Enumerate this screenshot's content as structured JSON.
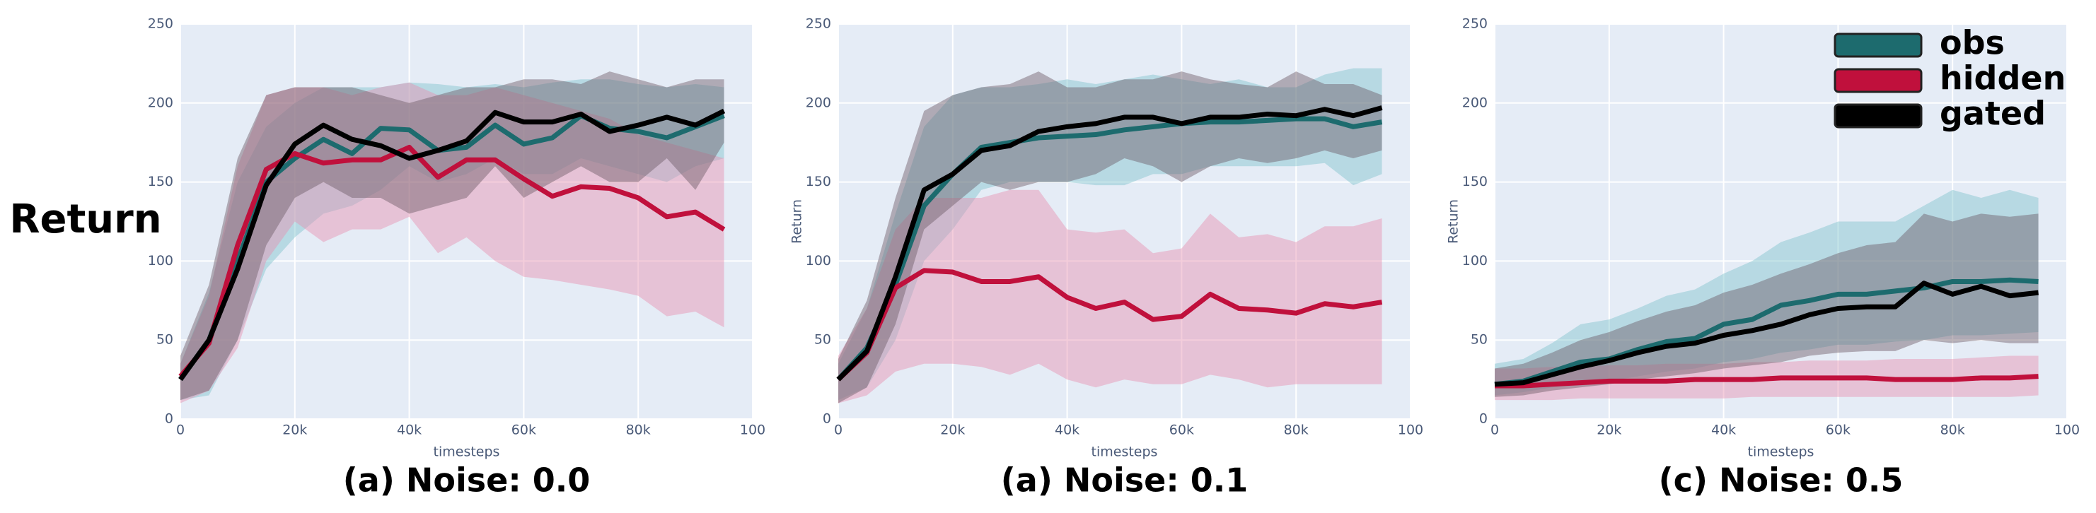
{
  "chart_data": [
    {
      "type": "line",
      "title": "(a) Noise: 0.0",
      "xlabel": "timesteps",
      "ylabel": "Return",
      "x": [
        0,
        5000,
        10000,
        15000,
        20000,
        25000,
        30000,
        35000,
        40000,
        45000,
        50000,
        55000,
        60000,
        65000,
        70000,
        75000,
        80000,
        85000,
        90000,
        95000
      ],
      "xlim": [
        0,
        100000
      ],
      "xticks": [
        0,
        {
          "value": 20000,
          "label": "20k"
        },
        {
          "value": 40000,
          "label": "40k"
        },
        {
          "value": 60000,
          "label": "60k"
        },
        {
          "value": 80000,
          "label": "80k"
        },
        {
          "value": 100000,
          "label": "100"
        }
      ],
      "ylim": [
        0,
        250
      ],
      "yticks": [
        0,
        50,
        100,
        150,
        200,
        250
      ],
      "grid": true,
      "series": [
        {
          "name": "obs",
          "color": "#1d6b6e",
          "band_color": "#7fc4cc",
          "values": [
            25,
            50,
            100,
            150,
            165,
            177,
            168,
            184,
            183,
            170,
            172,
            186,
            174,
            178,
            192,
            184,
            182,
            178,
            185,
            192
          ],
          "lower": [
            12,
            15,
            50,
            95,
            115,
            130,
            135,
            145,
            160,
            150,
            155,
            165,
            155,
            155,
            165,
            160,
            155,
            150,
            160,
            165
          ],
          "upper": [
            35,
            80,
            150,
            185,
            200,
            210,
            210,
            210,
            213,
            212,
            210,
            212,
            210,
            213,
            215,
            215,
            212,
            210,
            212,
            210
          ]
        },
        {
          "name": "hidden",
          "color": "#c0103c",
          "band_color": "#e691b0",
          "values": [
            27,
            48,
            110,
            158,
            168,
            162,
            164,
            164,
            172,
            153,
            164,
            164,
            152,
            141,
            147,
            146,
            140,
            128,
            131,
            120
          ],
          "lower": [
            10,
            18,
            45,
            100,
            125,
            112,
            120,
            120,
            128,
            105,
            115,
            100,
            90,
            88,
            85,
            82,
            78,
            65,
            68,
            58
          ],
          "upper": [
            35,
            78,
            160,
            205,
            210,
            210,
            205,
            210,
            213,
            205,
            205,
            210,
            205,
            200,
            195,
            190,
            180,
            175,
            170,
            165
          ]
        },
        {
          "name": "gated",
          "color": "#000000",
          "band_color": "#6d5a66",
          "values": [
            25,
            50,
            95,
            148,
            174,
            186,
            177,
            173,
            165,
            170,
            176,
            194,
            188,
            188,
            193,
            182,
            186,
            191,
            186,
            195
          ],
          "lower": [
            12,
            18,
            50,
            110,
            140,
            150,
            140,
            140,
            130,
            135,
            140,
            160,
            140,
            150,
            160,
            150,
            150,
            165,
            145,
            175
          ],
          "upper": [
            40,
            85,
            165,
            205,
            210,
            210,
            210,
            205,
            200,
            205,
            210,
            210,
            215,
            215,
            212,
            220,
            215,
            210,
            215,
            215
          ]
        }
      ]
    },
    {
      "type": "line",
      "title": "(a) Noise: 0.1",
      "xlabel": "timesteps",
      "ylabel": "Return",
      "x": [
        0,
        5000,
        10000,
        15000,
        20000,
        25000,
        30000,
        35000,
        40000,
        45000,
        50000,
        55000,
        60000,
        65000,
        70000,
        75000,
        80000,
        85000,
        90000,
        95000
      ],
      "xlim": [
        0,
        100000
      ],
      "xticks": [
        0,
        {
          "value": 20000,
          "label": "20k"
        },
        {
          "value": 40000,
          "label": "40k"
        },
        {
          "value": 60000,
          "label": "60k"
        },
        {
          "value": 80000,
          "label": "80k"
        },
        {
          "value": 100000,
          "label": "100"
        }
      ],
      "ylim": [
        0,
        250
      ],
      "yticks": [
        0,
        50,
        100,
        150,
        200,
        250
      ],
      "grid": true,
      "series": [
        {
          "name": "obs",
          "color": "#1d6b6e",
          "band_color": "#7fc4cc",
          "values": [
            25,
            45,
            85,
            135,
            155,
            172,
            175,
            178,
            179,
            180,
            183,
            185,
            187,
            188,
            188,
            189,
            190,
            190,
            185,
            188
          ],
          "lower": [
            12,
            20,
            50,
            100,
            120,
            145,
            150,
            150,
            150,
            148,
            148,
            155,
            155,
            160,
            160,
            160,
            160,
            162,
            148,
            155
          ],
          "upper": [
            35,
            70,
            130,
            185,
            205,
            210,
            210,
            212,
            215,
            212,
            215,
            218,
            215,
            212,
            215,
            210,
            210,
            218,
            222,
            222
          ]
        },
        {
          "name": "hidden",
          "color": "#c0103c",
          "band_color": "#e691b0",
          "values": [
            25,
            42,
            83,
            94,
            93,
            87,
            87,
            90,
            77,
            70,
            74,
            63,
            65,
            79,
            70,
            69,
            67,
            73,
            71,
            74
          ],
          "lower": [
            10,
            15,
            30,
            35,
            35,
            33,
            28,
            35,
            25,
            20,
            25,
            22,
            22,
            28,
            25,
            20,
            22,
            22,
            22,
            22
          ],
          "upper": [
            40,
            70,
            120,
            140,
            140,
            140,
            145,
            145,
            120,
            118,
            120,
            105,
            108,
            130,
            115,
            117,
            112,
            122,
            122,
            127
          ]
        },
        {
          "name": "gated",
          "color": "#000000",
          "band_color": "#6d5a66",
          "values": [
            25,
            43,
            90,
            145,
            155,
            170,
            173,
            182,
            185,
            187,
            191,
            191,
            187,
            191,
            191,
            193,
            192,
            196,
            192,
            197
          ],
          "lower": [
            10,
            20,
            60,
            120,
            135,
            150,
            145,
            150,
            150,
            155,
            165,
            160,
            150,
            160,
            165,
            162,
            165,
            170,
            165,
            170
          ],
          "upper": [
            38,
            75,
            140,
            195,
            205,
            210,
            212,
            220,
            210,
            210,
            215,
            215,
            220,
            215,
            212,
            210,
            220,
            212,
            212,
            205
          ]
        }
      ]
    },
    {
      "type": "line",
      "title": "(c) Noise: 0.5",
      "xlabel": "timesteps",
      "ylabel": "Return",
      "legend": "upper right",
      "x": [
        0,
        5000,
        10000,
        15000,
        20000,
        25000,
        30000,
        35000,
        40000,
        45000,
        50000,
        55000,
        60000,
        65000,
        70000,
        75000,
        80000,
        85000,
        90000,
        95000
      ],
      "xlim": [
        0,
        100000
      ],
      "xticks": [
        0,
        {
          "value": 20000,
          "label": "20k"
        },
        {
          "value": 40000,
          "label": "40k"
        },
        {
          "value": 60000,
          "label": "60k"
        },
        {
          "value": 80000,
          "label": "80k"
        },
        {
          "value": 100000,
          "label": "100"
        }
      ],
      "ylim": [
        0,
        250
      ],
      "yticks": [
        0,
        50,
        100,
        150,
        200,
        250
      ],
      "grid": true,
      "series": [
        {
          "name": "obs",
          "color": "#1d6b6e",
          "band_color": "#7fc4cc",
          "values": [
            22,
            24,
            30,
            36,
            38,
            44,
            49,
            51,
            60,
            63,
            72,
            75,
            79,
            79,
            81,
            83,
            87,
            87,
            88,
            87
          ],
          "lower": [
            15,
            17,
            20,
            22,
            24,
            27,
            30,
            32,
            36,
            38,
            42,
            44,
            47,
            47,
            49,
            50,
            53,
            53,
            54,
            55
          ],
          "upper": [
            35,
            38,
            48,
            60,
            63,
            70,
            78,
            82,
            92,
            100,
            112,
            118,
            125,
            125,
            125,
            135,
            145,
            140,
            145,
            140
          ]
        },
        {
          "name": "hidden",
          "color": "#c0103c",
          "band_color": "#e691b0",
          "values": [
            21,
            21,
            22,
            23,
            24,
            24,
            24,
            25,
            25,
            25,
            26,
            26,
            26,
            26,
            25,
            25,
            25,
            26,
            26,
            27
          ],
          "lower": [
            12,
            12,
            12,
            13,
            13,
            13,
            13,
            13,
            13,
            14,
            14,
            14,
            14,
            14,
            14,
            14,
            14,
            14,
            14,
            15
          ],
          "upper": [
            32,
            32,
            33,
            33,
            34,
            34,
            35,
            35,
            35,
            36,
            36,
            37,
            37,
            37,
            38,
            38,
            38,
            39,
            40,
            40
          ]
        },
        {
          "name": "gated",
          "color": "#000000",
          "band_color": "#6d5a66",
          "values": [
            22,
            23,
            28,
            33,
            37,
            42,
            46,
            48,
            53,
            56,
            60,
            66,
            70,
            71,
            71,
            86,
            79,
            84,
            78,
            80
          ],
          "lower": [
            14,
            15,
            18,
            20,
            22,
            25,
            27,
            29,
            32,
            34,
            36,
            40,
            42,
            43,
            43,
            50,
            48,
            50,
            48,
            48
          ],
          "upper": [
            32,
            35,
            42,
            50,
            55,
            62,
            68,
            72,
            80,
            85,
            92,
            98,
            105,
            110,
            112,
            130,
            125,
            130,
            128,
            130
          ]
        }
      ]
    }
  ]
}
